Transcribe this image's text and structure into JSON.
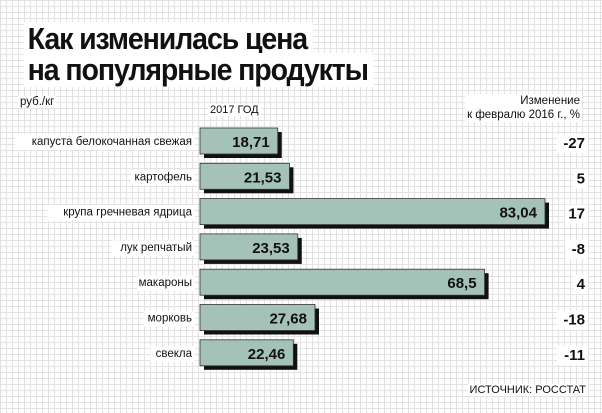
{
  "title_line1": "Как изменилась цена",
  "title_line2": "на популярные продукты",
  "unit_label": "руб./кг",
  "year_label": "2017 ГОД",
  "change_header_line1": "Изменение",
  "change_header_line2": "к февралю 2016 г., %",
  "source": "ИСТОЧНИК: РОССТАТ",
  "colors": {
    "bar_fill": "#a4c2b8",
    "bar_shadow": "#111111",
    "bar_value_bg": "#ffffff"
  },
  "chart_data": {
    "type": "bar",
    "orientation": "horizontal",
    "categories": [
      "капуста белокочанная свежая",
      "картофель",
      "крупа гречневая ядрица",
      "лук репчатый",
      "макароны",
      "морковь",
      "свекла"
    ],
    "value_labels": [
      "18,71",
      "21,53",
      "83,04",
      "23,53",
      "68,5",
      "27,68",
      "22,46"
    ],
    "values": [
      18.71,
      21.53,
      83.04,
      23.53,
      68.5,
      27.68,
      22.46
    ],
    "change_labels": [
      "-27",
      "5",
      "17",
      "-8",
      "4",
      "-18",
      "-11"
    ],
    "changes": [
      -27,
      5,
      17,
      -8,
      4,
      -18,
      -11
    ]
  }
}
